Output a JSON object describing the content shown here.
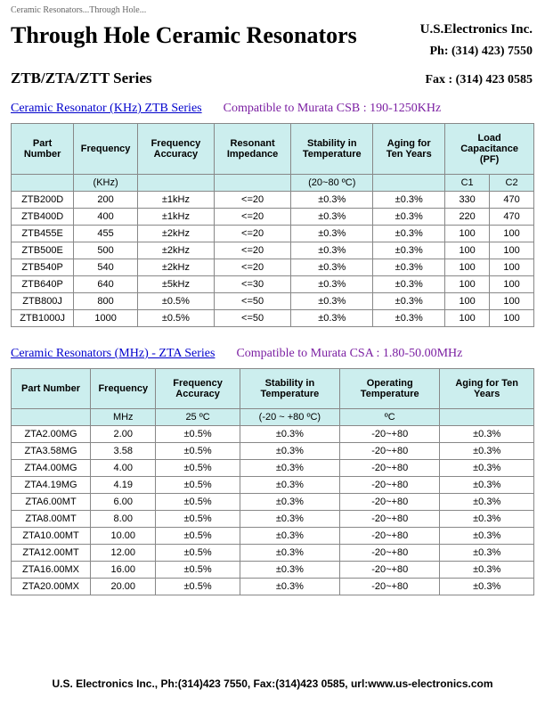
{
  "breadcrumb": "Ceramic Resonators...Through Hole...",
  "title": "Through Hole Ceramic Resonators",
  "company": {
    "name": "U.S.Electronics Inc.",
    "phone": "Ph: (314) 423) 7550",
    "fax": "Fax : (314) 423 0585"
  },
  "series": "ZTB/ZTA/ZTT Series",
  "section1": {
    "link": "Ceramic Resonator (KHz) ZTB Series",
    "compat": "Compatible to Murata CSB : 190-1250KHz"
  },
  "table1": {
    "headers": [
      "Part Number",
      "Frequency",
      "Frequency Accuracy",
      "Resonant Impedance",
      "Stability in Temperature",
      "Aging for Ten Years",
      "Load Capacitance (PF)"
    ],
    "units": [
      "",
      "(KHz)",
      "",
      "",
      "(20~80 ºC)",
      "",
      "C1",
      "C2"
    ],
    "rows": [
      [
        "ZTB200D",
        "200",
        "±1kHz",
        "<=20",
        "±0.3%",
        "±0.3%",
        "330",
        "470"
      ],
      [
        "ZTB400D",
        "400",
        "±1kHz",
        "<=20",
        "±0.3%",
        "±0.3%",
        "220",
        "470"
      ],
      [
        "ZTB455E",
        "455",
        "±2kHz",
        "<=20",
        "±0.3%",
        "±0.3%",
        "100",
        "100"
      ],
      [
        "ZTB500E",
        "500",
        "±2kHz",
        "<=20",
        "±0.3%",
        "±0.3%",
        "100",
        "100"
      ],
      [
        "ZTB540P",
        "540",
        "±2kHz",
        "<=20",
        "±0.3%",
        "±0.3%",
        "100",
        "100"
      ],
      [
        "ZTB640P",
        "640",
        "±5kHz",
        "<=30",
        "±0.3%",
        "±0.3%",
        "100",
        "100"
      ],
      [
        "ZTB800J",
        "800",
        "±0.5%",
        "<=50",
        "±0.3%",
        "±0.3%",
        "100",
        "100"
      ],
      [
        "ZTB1000J",
        "1000",
        "±0.5%",
        "<=50",
        "±0.3%",
        "±0.3%",
        "100",
        "100"
      ]
    ]
  },
  "section2": {
    "link": "Ceramic Resonators (MHz) - ZTA Series",
    "compat": "Compatible to Murata CSA : 1.80-50.00MHz"
  },
  "table2": {
    "headers": [
      "Part Number",
      "Frequency",
      "Frequency Accuracy",
      "Stability in Temperature",
      "Operating Temperature",
      "Aging for Ten Years"
    ],
    "units": [
      "",
      "MHz",
      "25 ºC",
      "(-20 ~ +80 ºC)",
      "ºC",
      ""
    ],
    "rows": [
      [
        "ZTA2.00MG",
        "2.00",
        "±0.5%",
        "±0.3%",
        "-20~+80",
        "±0.3%"
      ],
      [
        "ZTA3.58MG",
        "3.58",
        "±0.5%",
        "±0.3%",
        "-20~+80",
        "±0.3%"
      ],
      [
        "ZTA4.00MG",
        "4.00",
        "±0.5%",
        "±0.3%",
        "-20~+80",
        "±0.3%"
      ],
      [
        "ZTA4.19MG",
        "4.19",
        "±0.5%",
        "±0.3%",
        "-20~+80",
        "±0.3%"
      ],
      [
        "ZTA6.00MT",
        "6.00",
        "±0.5%",
        "±0.3%",
        "-20~+80",
        "±0.3%"
      ],
      [
        "ZTA8.00MT",
        "8.00",
        "±0.5%",
        "±0.3%",
        "-20~+80",
        "±0.3%"
      ],
      [
        "ZTA10.00MT",
        "10.00",
        "±0.5%",
        "±0.3%",
        "-20~+80",
        "±0.3%"
      ],
      [
        "ZTA12.00MT",
        "12.00",
        "±0.5%",
        "±0.3%",
        "-20~+80",
        "±0.3%"
      ],
      [
        "ZTA16.00MX",
        "16.00",
        "±0.5%",
        "±0.3%",
        "-20~+80",
        "±0.3%"
      ],
      [
        "ZTA20.00MX",
        "20.00",
        "±0.5%",
        "±0.3%",
        "-20~+80",
        "±0.3%"
      ]
    ]
  },
  "footer": "U.S. Electronics Inc., Ph:(314)423 7550, Fax:(314)423 0585, url:www.us-electronics.com",
  "colwidths1": [
    62,
    62,
    80,
    80,
    85,
    80,
    44,
    44
  ],
  "colwidths2": [
    82,
    64,
    90,
    110,
    110,
    110
  ]
}
